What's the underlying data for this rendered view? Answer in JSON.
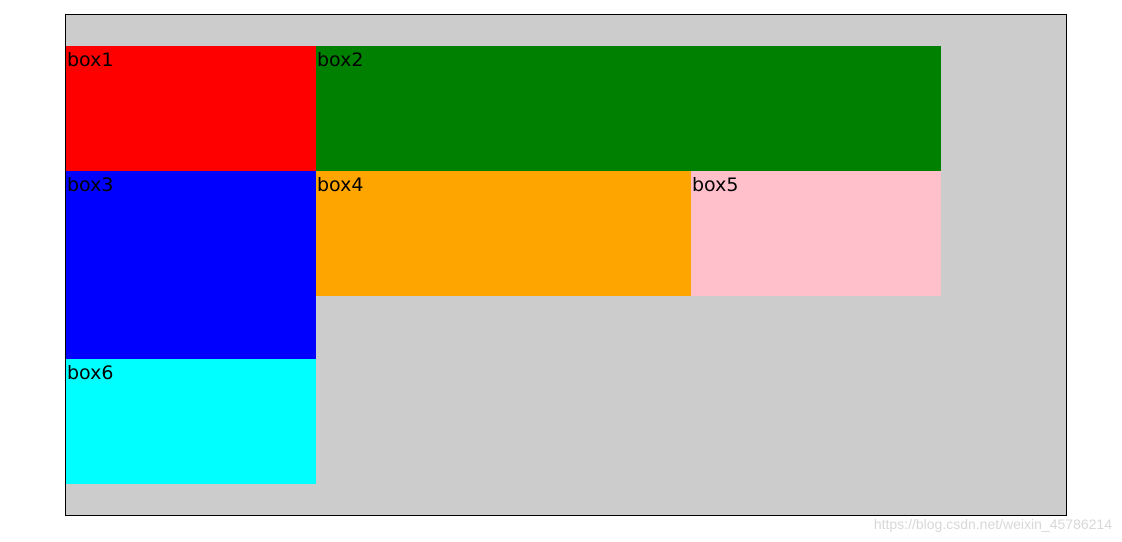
{
  "boxes": [
    {
      "label": "box1",
      "color": "#ff0000"
    },
    {
      "label": "box2",
      "color": "#008000"
    },
    {
      "label": "box3",
      "color": "#0000ff"
    },
    {
      "label": "box4",
      "color": "#ffa500"
    },
    {
      "label": "box5",
      "color": "#ffc0cb"
    },
    {
      "label": "box6",
      "color": "#00ffff"
    }
  ],
  "container": {
    "background": "#cccccc",
    "border": "#000000"
  },
  "watermark": {
    "text": "https://blog.csdn.net/weixin_45786214"
  }
}
